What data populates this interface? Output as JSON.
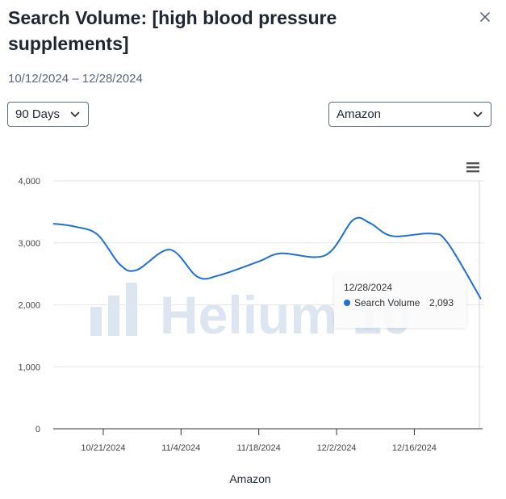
{
  "header": {
    "title": "Search Volume: [high blood pressure supplements]",
    "date_range": "10/12/2024 – 12/28/2024"
  },
  "controls": {
    "period_selected": "90 Days",
    "marketplace_selected": "Amazon"
  },
  "tooltip": {
    "date": "12/28/2024",
    "series_name": "Search Volume",
    "value": "2,093"
  },
  "colors": {
    "series": "#1f6fd6",
    "grid": "#e6e6e6",
    "watermark": "#dde5f1"
  },
  "chart_data": {
    "type": "line",
    "watermark": "Helium 10",
    "xlabel": "Amazon",
    "ylabel": "",
    "ylim": [
      0,
      4000
    ],
    "yticks": [
      {
        "value": 0,
        "label": "0"
      },
      {
        "value": 1000,
        "label": "1,000"
      },
      {
        "value": 2000,
        "label": "2,000"
      },
      {
        "value": 3000,
        "label": "3,000"
      },
      {
        "value": 4000,
        "label": "4,000"
      }
    ],
    "xlim": [
      "2024-10-12",
      "2024-12-28"
    ],
    "xticks": [
      {
        "date": "2024-10-21",
        "label": "10/21/2024"
      },
      {
        "date": "2024-11-04",
        "label": "11/4/2024"
      },
      {
        "date": "2024-11-18",
        "label": "11/18/2024"
      },
      {
        "date": "2024-12-02",
        "label": "12/2/2024"
      },
      {
        "date": "2024-12-16",
        "label": "12/16/2024"
      }
    ],
    "grid": true,
    "legend": false,
    "series": [
      {
        "name": "Search Volume",
        "points": [
          {
            "x": "2024-10-12",
            "y": 3310
          },
          {
            "x": "2024-10-16",
            "y": 3260
          },
          {
            "x": "2024-10-20",
            "y": 3130
          },
          {
            "x": "2024-10-24",
            "y": 2650
          },
          {
            "x": "2024-10-27",
            "y": 2560
          },
          {
            "x": "2024-11-02",
            "y": 2890
          },
          {
            "x": "2024-11-07",
            "y": 2450
          },
          {
            "x": "2024-11-11",
            "y": 2480
          },
          {
            "x": "2024-11-18",
            "y": 2700
          },
          {
            "x": "2024-11-22",
            "y": 2830
          },
          {
            "x": "2024-11-30",
            "y": 2800
          },
          {
            "x": "2024-12-05",
            "y": 3370
          },
          {
            "x": "2024-12-08",
            "y": 3320
          },
          {
            "x": "2024-12-12",
            "y": 3110
          },
          {
            "x": "2024-12-19",
            "y": 3150
          },
          {
            "x": "2024-12-22",
            "y": 3000
          },
          {
            "x": "2024-12-28",
            "y": 2093
          }
        ]
      }
    ]
  }
}
